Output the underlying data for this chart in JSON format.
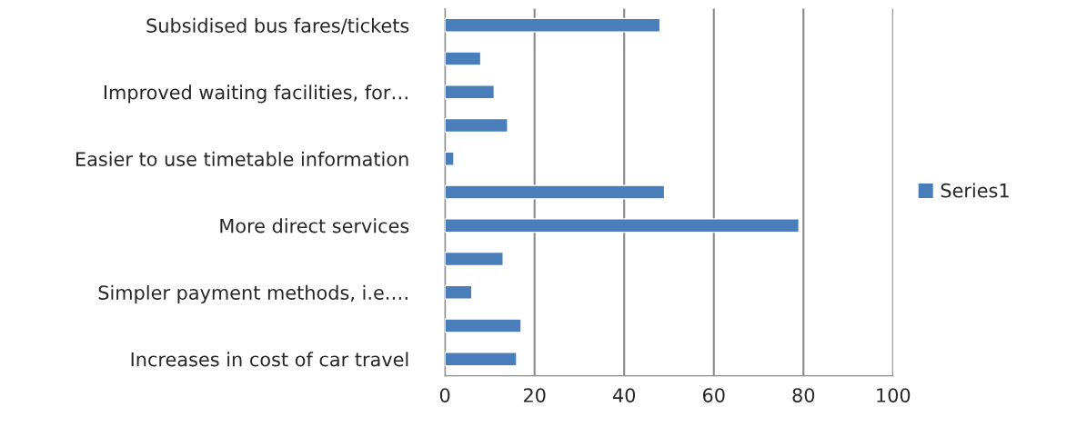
{
  "chart_data": {
    "type": "bar",
    "orientation": "horizontal",
    "categories": [
      "Subsidised bus fares/tickets",
      null,
      "Improved waiting facilities, for…",
      null,
      "Easier to use timetable information",
      null,
      "More direct services",
      null,
      "Simpler payment methods, i.e.…",
      null,
      "Increases in cost of car travel"
    ],
    "series": [
      {
        "name": "Series1",
        "color": "#4a7ebb",
        "values": [
          48,
          8,
          11,
          14,
          2,
          49,
          79,
          13,
          6,
          17,
          16
        ]
      }
    ],
    "xlim": [
      0,
      100
    ],
    "xticks": [
      0,
      20,
      40,
      60,
      80,
      100
    ],
    "grid": "x",
    "legend": "right"
  }
}
